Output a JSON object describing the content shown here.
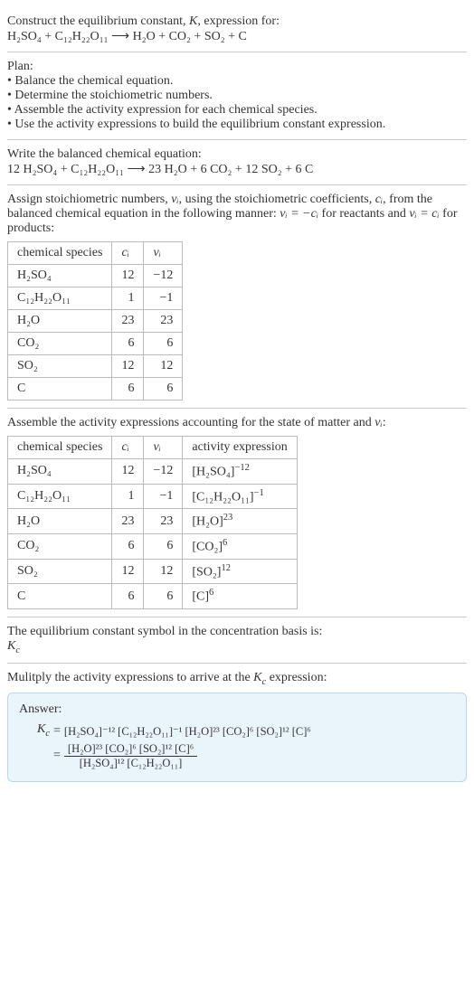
{
  "intro": {
    "line1": "Construct the equilibrium constant, ",
    "K": "K",
    "line1b": ", expression for:",
    "equation_lhs": "H₂SO₄ + C₁₂H₂₂O₁₁",
    "arrow": "⟶",
    "equation_rhs": "H₂O + CO₂ + SO₂ + C"
  },
  "plan": {
    "title": "Plan:",
    "b1": "• Balance the chemical equation.",
    "b2": "• Determine the stoichiometric numbers.",
    "b3": "• Assemble the activity expression for each chemical species.",
    "b4": "• Use the activity expressions to build the equilibrium constant expression."
  },
  "balanced": {
    "title": "Write the balanced chemical equation:",
    "lhs": "12 H₂SO₄ + C₁₂H₂₂O₁₁",
    "arrow": "⟶",
    "rhs": "23 H₂O + 6 CO₂ + 12 SO₂ + 6 C"
  },
  "assign": {
    "p1": "Assign stoichiometric numbers, ",
    "vi": "νᵢ",
    "p2": ", using the stoichiometric coefficients, ",
    "ci": "cᵢ",
    "p3": ", from the balanced chemical equation in the following manner: ",
    "eq1": "νᵢ = −cᵢ",
    "p4": " for reactants and ",
    "eq2": "νᵢ = cᵢ",
    "p5": " for products:"
  },
  "table1": {
    "h1": "chemical species",
    "h2": "cᵢ",
    "h3": "νᵢ",
    "rows": [
      {
        "sp": "H₂SO₄",
        "c": "12",
        "v": "−12"
      },
      {
        "sp": "C₁₂H₂₂O₁₁",
        "c": "1",
        "v": "−1"
      },
      {
        "sp": "H₂O",
        "c": "23",
        "v": "23"
      },
      {
        "sp": "CO₂",
        "c": "6",
        "v": "6"
      },
      {
        "sp": "SO₂",
        "c": "12",
        "v": "12"
      },
      {
        "sp": "C",
        "c": "6",
        "v": "6"
      }
    ]
  },
  "assemble": {
    "p1": "Assemble the activity expressions accounting for the state of matter and ",
    "vi": "νᵢ",
    "p2": ":"
  },
  "table2": {
    "h1": "chemical species",
    "h2": "cᵢ",
    "h3": "νᵢ",
    "h4": "activity expression",
    "rows": [
      {
        "sp": "H₂SO₄",
        "c": "12",
        "v": "−12",
        "ae_base": "[H₂SO₄]",
        "ae_exp": "−12"
      },
      {
        "sp": "C₁₂H₂₂O₁₁",
        "c": "1",
        "v": "−1",
        "ae_base": "[C₁₂H₂₂O₁₁]",
        "ae_exp": "−1"
      },
      {
        "sp": "H₂O",
        "c": "23",
        "v": "23",
        "ae_base": "[H₂O]",
        "ae_exp": "23"
      },
      {
        "sp": "CO₂",
        "c": "6",
        "v": "6",
        "ae_base": "[CO₂]",
        "ae_exp": "6"
      },
      {
        "sp": "SO₂",
        "c": "12",
        "v": "12",
        "ae_base": "[SO₂]",
        "ae_exp": "12"
      },
      {
        "sp": "C",
        "c": "6",
        "v": "6",
        "ae_base": "[C]",
        "ae_exp": "6"
      }
    ]
  },
  "symbol": {
    "p": "The equilibrium constant symbol in the concentration basis is:",
    "kc": "K",
    "kc_sub": "c"
  },
  "multiply": {
    "p": "Mulitply the activity expressions to arrive at the ",
    "kc": "K",
    "kc_sub": "c",
    "p2": " expression:"
  },
  "answer": {
    "label": "Answer:",
    "kc": "K",
    "kc_sub": "c",
    "eq": " = ",
    "line1": "[H₂SO₄]⁻¹² [C₁₂H₂₂O₁₁]⁻¹ [H₂O]²³ [CO₂]⁶ [SO₂]¹² [C]⁶",
    "eq2": "= ",
    "frac_top": "[H₂O]²³ [CO₂]⁶ [SO₂]¹² [C]⁶",
    "frac_bot": "[H₂SO₄]¹² [C₁₂H₂₂O₁₁]"
  },
  "colors": {
    "text": "#333333",
    "border": "#cccccc",
    "table_border": "#bbbbbb",
    "answer_bg": "#eaf4fb",
    "answer_border": "#b8d8ee"
  }
}
